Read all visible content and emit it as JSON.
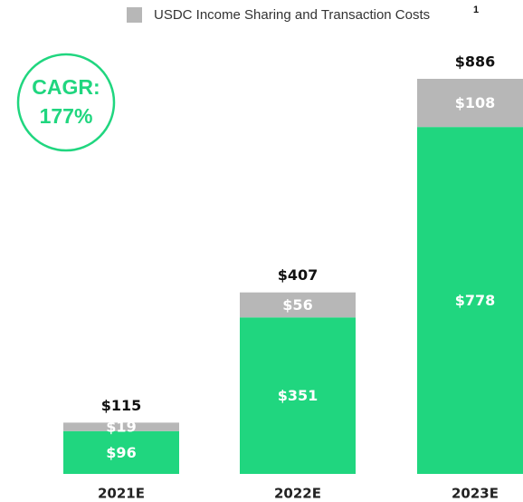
{
  "chart_data": {
    "type": "stacked-bar",
    "categories": [
      "2021E",
      "2022E",
      "2023E"
    ],
    "series": [
      {
        "color": "#20d67f",
        "values": [
          96,
          351,
          778
        ],
        "value_labels": [
          "$96",
          "$351",
          "$778"
        ]
      },
      {
        "name": "USDC Income Sharing and Transaction Costs",
        "color": "#b7b7b7",
        "values": [
          19,
          56,
          108
        ],
        "value_labels": [
          "$19",
          "$56",
          "$108"
        ]
      }
    ],
    "totals": [
      115,
      407,
      886
    ],
    "total_labels": [
      "$115",
      "$407",
      "$886"
    ],
    "legend_note": "1",
    "annotation": [
      "CAGR:",
      "177%"
    ],
    "annotation_color": "#20d67f"
  }
}
